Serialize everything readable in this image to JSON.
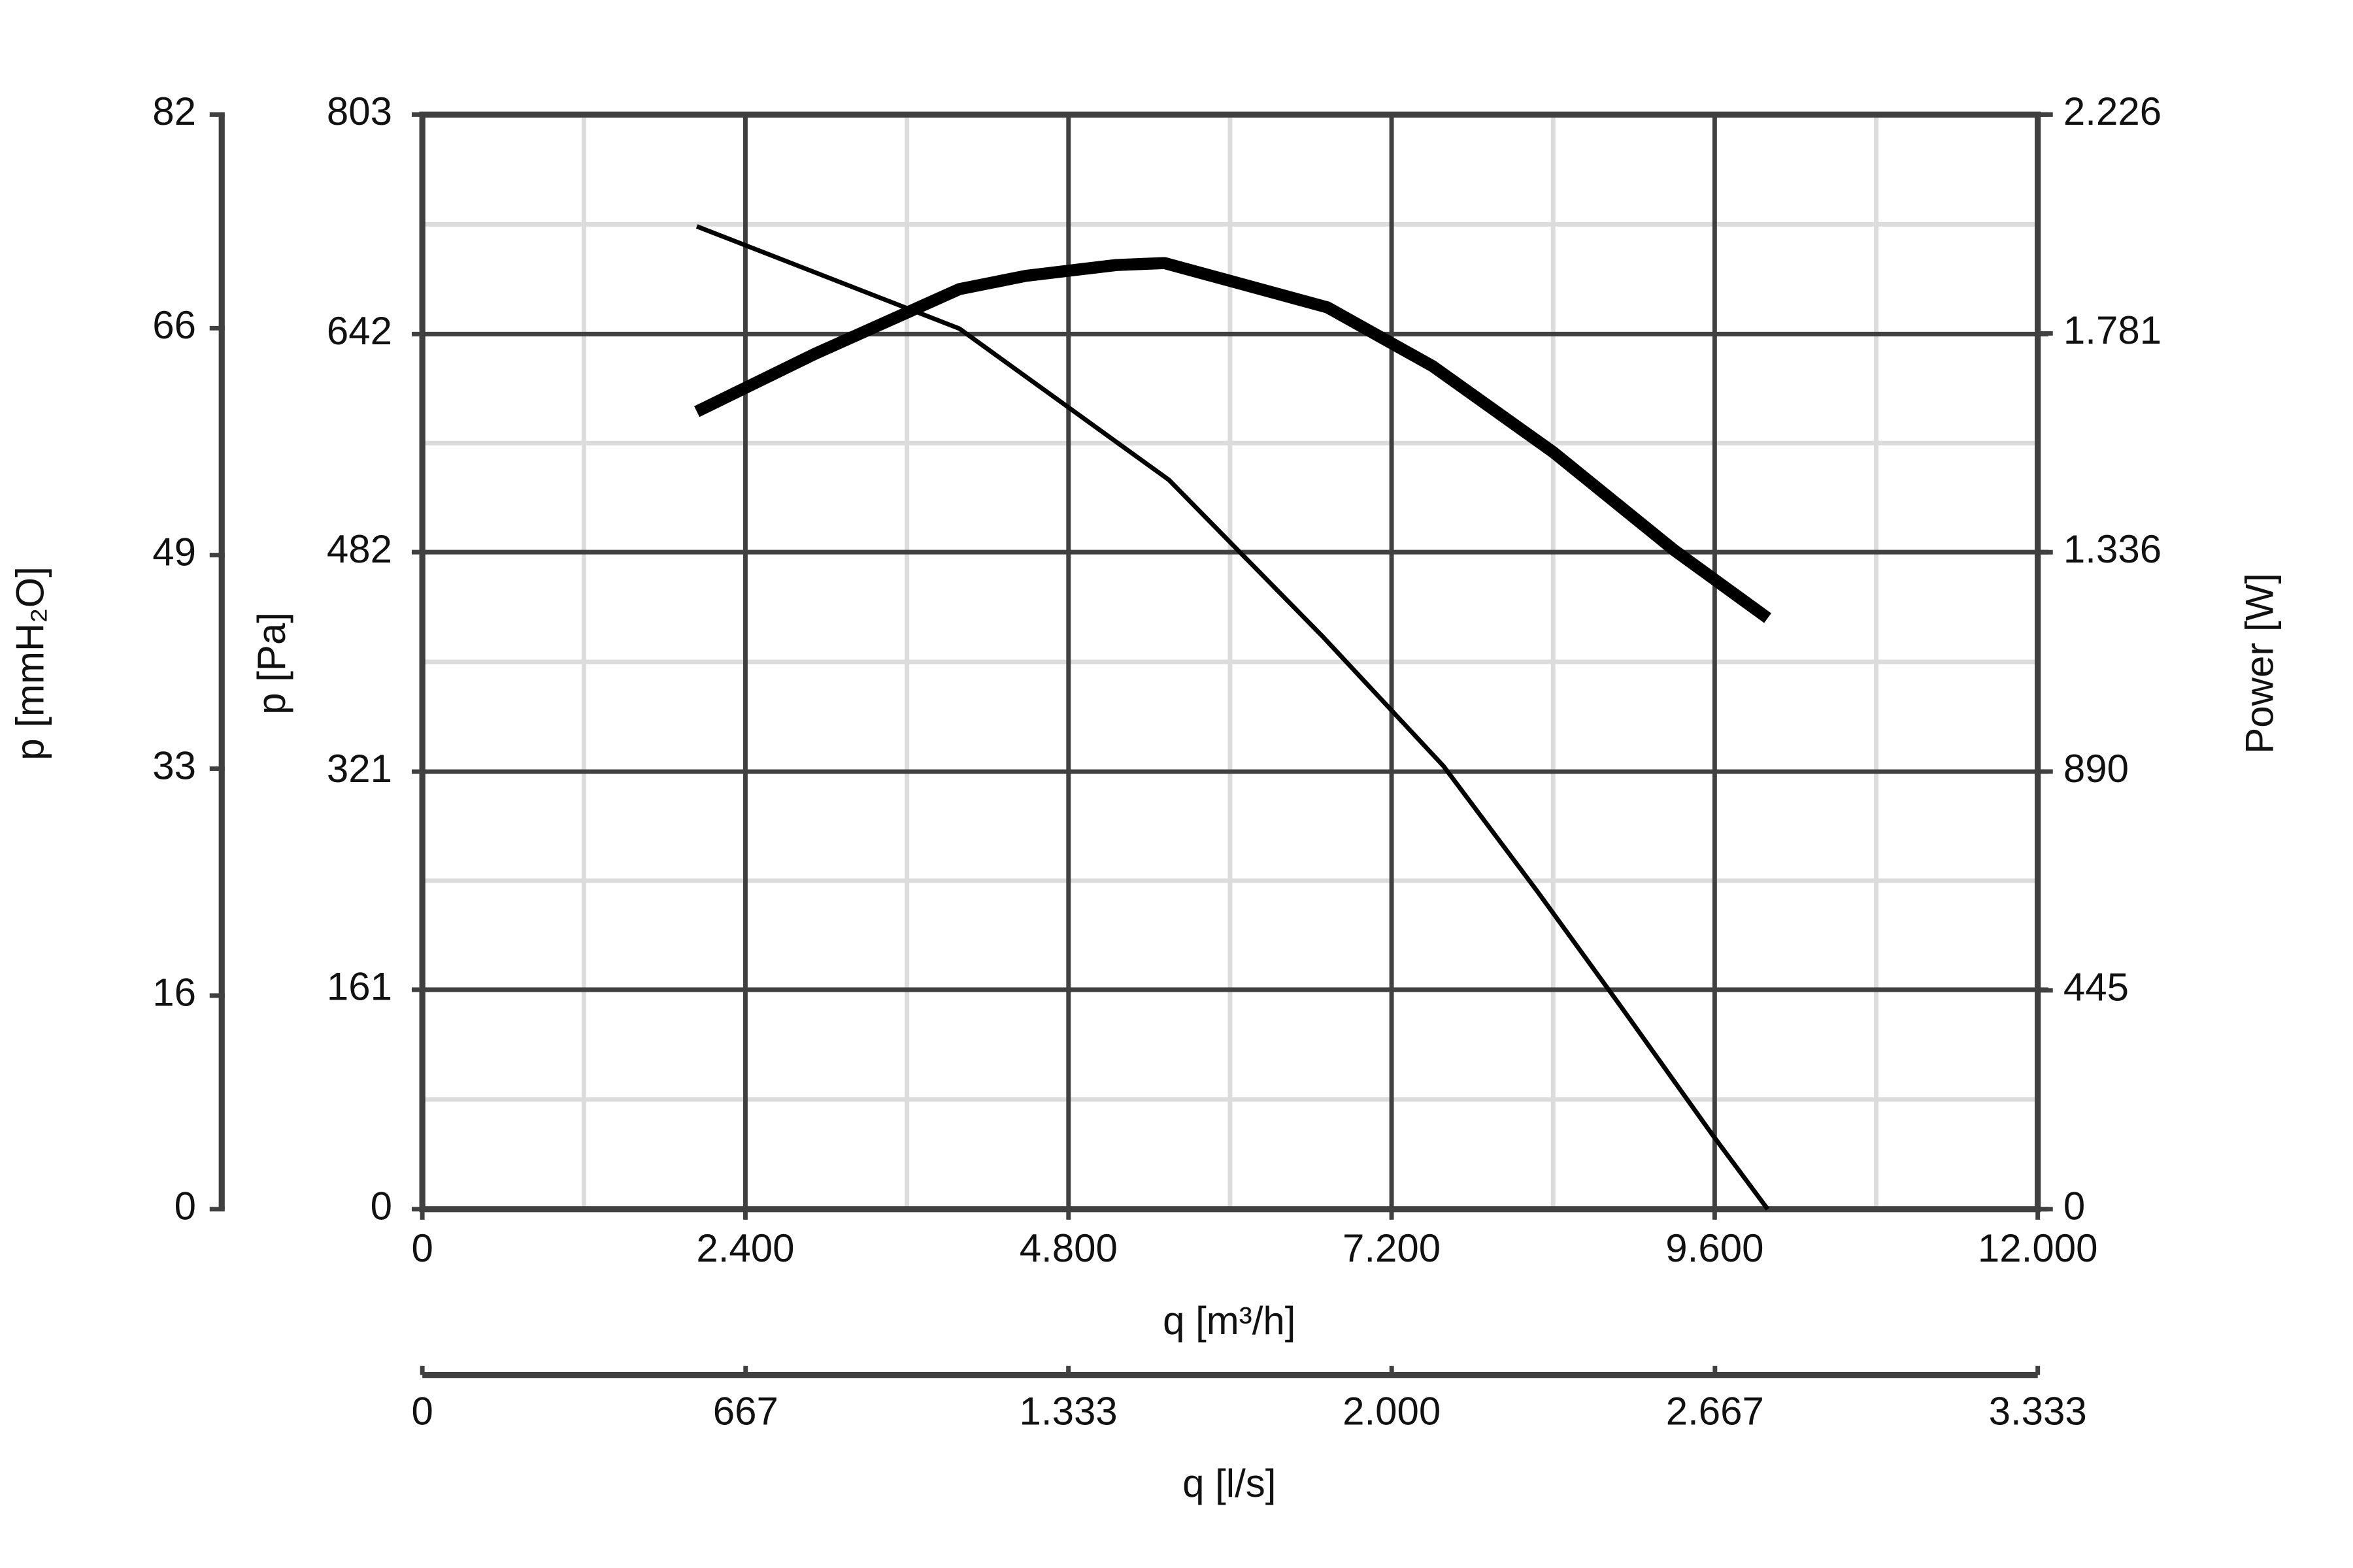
{
  "chart_data": {
    "type": "line",
    "xlabel": "q [m³/h]",
    "xlim": [
      0,
      12000
    ],
    "xticks": [
      0,
      {
        "value": 2400,
        "label": "2.400"
      },
      {
        "value": 4800,
        "label": "4.800"
      },
      {
        "value": 7200,
        "label": "7.200"
      },
      {
        "value": 9600,
        "label": "9.600"
      },
      {
        "value": 12000,
        "label": "12.000"
      }
    ],
    "x2label": "q [l/s]",
    "x2lim": [
      0,
      3333
    ],
    "x2ticks": [
      0,
      667,
      {
        "value": 1333,
        "label": "1.333"
      },
      {
        "value": 2000,
        "label": "2.000"
      },
      {
        "value": 2667,
        "label": "2.667"
      },
      {
        "value": 3333,
        "label": "3.333"
      }
    ],
    "ylabel": "p [Pa]",
    "ylim": [
      0,
      803
    ],
    "yticks": [
      0,
      161,
      321,
      482,
      642,
      803
    ],
    "y3label": "p [mmH₂O]",
    "y3lim": [
      0,
      82
    ],
    "y3ticks": [
      0,
      16,
      33,
      49,
      66,
      82
    ],
    "y2label": "Power [W]",
    "y2lim": [
      0,
      2226
    ],
    "y2ticks": [
      0,
      445,
      890,
      {
        "value": 1336,
        "label": "1.336"
      },
      {
        "value": 1781,
        "label": "1.781"
      },
      {
        "value": 2226,
        "label": "2.226"
      }
    ],
    "grid": true,
    "series": [
      {
        "color": "#000000",
        "line_width": 3,
        "axis": "y",
        "x": [
          2039,
          3989,
          5546,
          6689,
          7586,
          8291,
          8908,
          9580,
          9994
        ],
        "values": [
          721,
          646,
          535,
          420,
          325,
          232,
          148,
          55,
          0
        ]
      },
      {
        "color": "#000000",
        "line_width": 8,
        "axis": "y2",
        "x": [
          2039,
          2913,
          3989,
          4482,
          5154,
          5513,
          6723,
          7507,
          8403,
          9300,
          9994
        ],
        "values": [
          1622,
          1739,
          1871,
          1898,
          1920,
          1924,
          1834,
          1714,
          1539,
          1340,
          1202
        ]
      }
    ]
  }
}
